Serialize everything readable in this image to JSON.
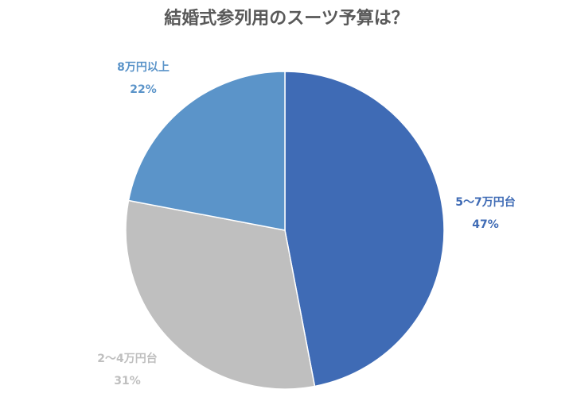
{
  "chart_data": {
    "type": "pie",
    "title": "結婚式参列用のスーツ予算は？",
    "categories": [
      "5〜7万円台",
      "2〜4万円台",
      "8万円以上"
    ],
    "values": [
      47,
      31,
      22
    ],
    "value_labels": [
      "47%",
      "31%",
      "22%"
    ],
    "colors": [
      "#3f6bb5",
      "#bfbfbf",
      "#5b94c9"
    ]
  }
}
